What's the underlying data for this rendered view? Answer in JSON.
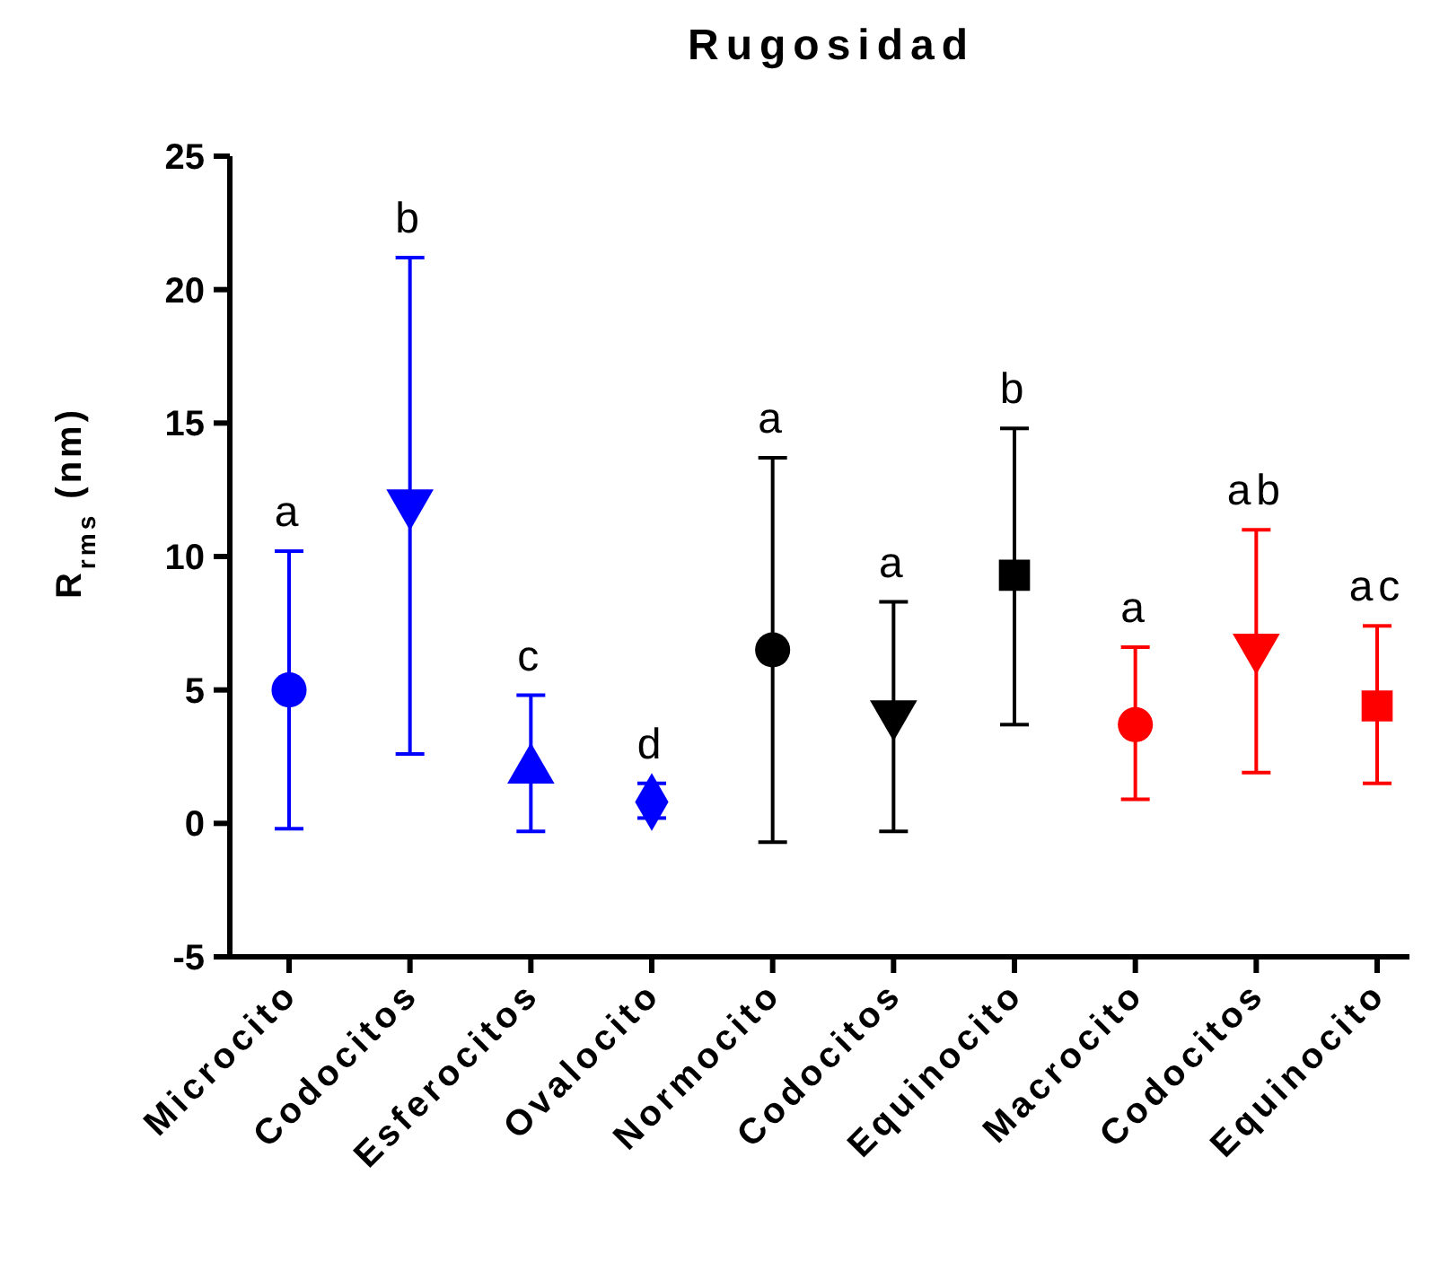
{
  "chart_data": {
    "type": "scatter",
    "title": "Rugosidad",
    "ylabel": "R$_{rms}$ (nm)",
    "categories": [
      "Microcito",
      "Codocitos",
      "Esferocitos",
      "Ovalocito",
      "Normocito",
      "Codocitos",
      "Equinocito",
      "Macrocito",
      "Codocitos",
      "Equinocito"
    ],
    "series": [
      {
        "color": "#0000ff",
        "marker": "circle",
        "values": [
          5.0,
          null,
          null,
          null,
          null,
          null,
          null,
          null,
          null,
          null
        ],
        "errors": [
          [
            -0.2,
            10.2
          ],
          null,
          null,
          null,
          null,
          null,
          null,
          null,
          null,
          null
        ]
      },
      {
        "color": "#0000ff",
        "marker": "triangle-down",
        "values": [
          null,
          12.0,
          null,
          null,
          null,
          null,
          null,
          null,
          null,
          null
        ],
        "errors": [
          null,
          [
            2.6,
            21.2
          ],
          null,
          null,
          null,
          null,
          null,
          null,
          null,
          null
        ]
      },
      {
        "color": "#0000ff",
        "marker": "triangle",
        "values": [
          null,
          null,
          2.0,
          null,
          null,
          null,
          null,
          null,
          null,
          null
        ],
        "errors": [
          null,
          null,
          [
            -0.3,
            4.8
          ],
          null,
          null,
          null,
          null,
          null,
          null,
          null
        ]
      },
      {
        "color": "#0000ff",
        "marker": "diamond",
        "values": [
          null,
          null,
          null,
          0.8,
          null,
          null,
          null,
          null,
          null,
          null
        ],
        "errors": [
          null,
          null,
          null,
          [
            0.2,
            1.5
          ],
          null,
          null,
          null,
          null,
          null,
          null
        ]
      },
      {
        "color": "#000000",
        "marker": "circle",
        "values": [
          null,
          null,
          null,
          null,
          6.5,
          null,
          null,
          null,
          null,
          null
        ],
        "errors": [
          null,
          null,
          null,
          null,
          [
            -0.7,
            13.7
          ],
          null,
          null,
          null,
          null,
          null
        ]
      },
      {
        "color": "#000000",
        "marker": "triangle-down",
        "values": [
          null,
          null,
          null,
          null,
          null,
          4.1,
          null,
          null,
          null,
          null
        ],
        "errors": [
          null,
          null,
          null,
          null,
          null,
          [
            -0.3,
            8.3
          ],
          null,
          null,
          null,
          null
        ]
      },
      {
        "color": "#000000",
        "marker": "square",
        "values": [
          null,
          null,
          null,
          null,
          null,
          null,
          9.3,
          null,
          null,
          null
        ],
        "errors": [
          null,
          null,
          null,
          null,
          null,
          null,
          [
            3.7,
            14.8
          ],
          null,
          null,
          null
        ]
      },
      {
        "color": "#ff0000",
        "marker": "circle",
        "values": [
          null,
          null,
          null,
          null,
          null,
          null,
          null,
          3.7,
          null,
          null
        ],
        "errors": [
          null,
          null,
          null,
          null,
          null,
          null,
          null,
          [
            0.9,
            6.6
          ],
          null,
          null
        ]
      },
      {
        "color": "#ff0000",
        "marker": "triangle-down",
        "values": [
          null,
          null,
          null,
          null,
          null,
          null,
          null,
          null,
          6.6,
          null
        ],
        "errors": [
          null,
          null,
          null,
          null,
          null,
          null,
          null,
          null,
          [
            1.9,
            11.0
          ],
          null
        ]
      },
      {
        "color": "#ff0000",
        "marker": "square",
        "values": [
          null,
          null,
          null,
          null,
          null,
          null,
          null,
          null,
          null,
          4.4
        ],
        "errors": [
          null,
          null,
          null,
          null,
          null,
          null,
          null,
          null,
          null,
          [
            1.5,
            7.4
          ]
        ]
      }
    ],
    "annotations": [
      "a",
      "b",
      "c",
      "d",
      "a",
      "a",
      "b",
      "a",
      "ab",
      "ac"
    ],
    "ylim": [
      -5,
      25
    ],
    "yticks": [
      -5,
      0,
      5,
      10,
      15,
      20,
      25
    ],
    "grid": false
  }
}
